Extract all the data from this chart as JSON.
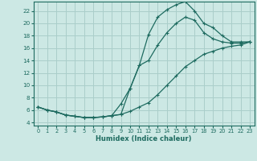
{
  "xlabel": "Humidex (Indice chaleur)",
  "bg_color": "#cce8e4",
  "grid_color": "#aaceca",
  "line_color": "#1e6b60",
  "xlim": [
    -0.5,
    23.5
  ],
  "ylim": [
    3.5,
    23.5
  ],
  "xticks": [
    0,
    1,
    2,
    3,
    4,
    5,
    6,
    7,
    8,
    9,
    10,
    11,
    12,
    13,
    14,
    15,
    16,
    17,
    18,
    19,
    20,
    21,
    22,
    23
  ],
  "yticks": [
    4,
    6,
    8,
    10,
    12,
    14,
    16,
    18,
    20,
    22
  ],
  "line1_x": [
    0,
    1,
    2,
    3,
    4,
    5,
    6,
    7,
    8,
    9,
    10,
    11,
    12,
    13,
    14,
    15,
    16,
    17,
    18,
    19,
    20,
    21,
    22,
    23
  ],
  "line1_y": [
    6.5,
    6.0,
    5.7,
    5.2,
    5.0,
    4.8,
    4.8,
    4.9,
    5.1,
    7.0,
    9.5,
    13.2,
    18.2,
    21.0,
    22.2,
    23.0,
    23.5,
    22.0,
    20.0,
    19.3,
    18.0,
    17.0,
    17.0,
    17.0
  ],
  "line2_x": [
    0,
    1,
    2,
    3,
    4,
    5,
    6,
    7,
    8,
    9,
    10,
    11,
    12,
    13,
    14,
    15,
    16,
    17,
    18,
    19,
    20,
    21,
    22,
    23
  ],
  "line2_y": [
    6.5,
    6.0,
    5.7,
    5.2,
    5.0,
    4.8,
    4.8,
    4.9,
    5.1,
    5.3,
    9.5,
    13.2,
    14.0,
    16.5,
    18.5,
    20.0,
    21.0,
    20.5,
    18.5,
    17.5,
    17.0,
    16.8,
    16.8,
    17.0
  ],
  "line3_x": [
    0,
    1,
    2,
    3,
    4,
    5,
    6,
    7,
    8,
    9,
    10,
    11,
    12,
    13,
    14,
    15,
    16,
    17,
    18,
    19,
    20,
    21,
    22,
    23
  ],
  "line3_y": [
    6.5,
    6.0,
    5.7,
    5.2,
    5.0,
    4.8,
    4.8,
    4.9,
    5.1,
    5.3,
    5.8,
    6.5,
    7.2,
    8.5,
    10.0,
    11.5,
    13.0,
    14.0,
    15.0,
    15.5,
    16.0,
    16.3,
    16.5,
    17.0
  ]
}
